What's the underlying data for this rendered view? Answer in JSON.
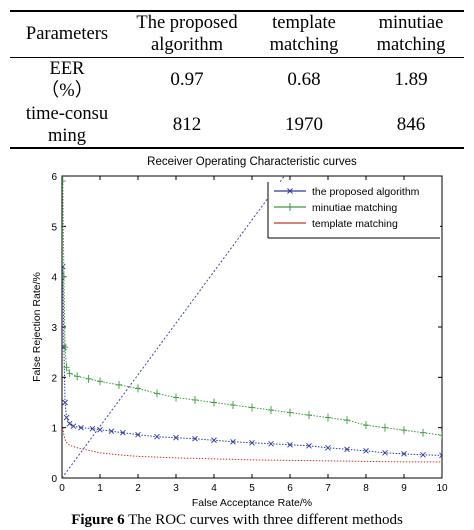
{
  "table": {
    "headers": [
      [
        "Parameters"
      ],
      [
        "The proposed",
        "algorithm"
      ],
      [
        "template",
        "matching"
      ],
      [
        "minutiae",
        "matching"
      ]
    ],
    "rows": [
      {
        "label": [
          "EER",
          "（%）"
        ],
        "values": [
          "0.97",
          "0.68",
          "1.89"
        ]
      },
      {
        "label": [
          "time-consu",
          "ming"
        ],
        "values": [
          "812",
          "1970",
          "846"
        ]
      }
    ]
  },
  "caption": {
    "label": "Figure 6",
    "text": " The ROC curves with three different methods"
  },
  "chart_data": {
    "type": "line",
    "title": "Receiver Operating Characteristic curves",
    "xlabel": "False Acceptance Rate/%",
    "ylabel": "False Rejection Rate/%",
    "xlim": [
      0,
      10
    ],
    "ylim": [
      0,
      6
    ],
    "xticks": [
      "0",
      "1",
      "2",
      "3",
      "4",
      "5",
      "6",
      "7",
      "8",
      "9",
      "10"
    ],
    "yticks": [
      "0",
      "1",
      "2",
      "3",
      "4",
      "5",
      "6"
    ],
    "legend_position": "top-right",
    "grid": false,
    "series": [
      {
        "name": "the proposed algorithm",
        "color": "#2b3a9a",
        "marker": "x",
        "x": [
          0.02,
          0.05,
          0.08,
          0.12,
          0.2,
          0.3,
          0.5,
          0.8,
          1.0,
          1.3,
          1.6,
          2.0,
          2.5,
          3.0,
          3.5,
          4.0,
          4.5,
          5.0,
          5.5,
          6.0,
          6.5,
          7.0,
          7.5,
          8.0,
          8.5,
          9.0,
          9.5,
          10.0
        ],
        "y": [
          4.2,
          2.6,
          1.5,
          1.2,
          1.08,
          1.03,
          1.0,
          0.98,
          0.96,
          0.93,
          0.9,
          0.86,
          0.82,
          0.8,
          0.78,
          0.75,
          0.72,
          0.7,
          0.68,
          0.66,
          0.64,
          0.6,
          0.57,
          0.54,
          0.5,
          0.48,
          0.46,
          0.45
        ]
      },
      {
        "name": "minutiae matching",
        "color": "#3c9a3c",
        "marker": "+",
        "x": [
          0.02,
          0.05,
          0.08,
          0.12,
          0.2,
          0.4,
          0.7,
          1.0,
          1.5,
          2.0,
          2.5,
          3.0,
          3.5,
          4.0,
          4.5,
          5.0,
          5.5,
          6.0,
          6.5,
          7.0,
          7.5,
          8.0,
          8.5,
          9.0,
          9.5,
          10.0
        ],
        "y": [
          5.9,
          4.0,
          2.6,
          2.2,
          2.08,
          2.02,
          1.97,
          1.92,
          1.85,
          1.78,
          1.68,
          1.6,
          1.55,
          1.5,
          1.45,
          1.4,
          1.35,
          1.3,
          1.25,
          1.2,
          1.15,
          1.05,
          1.0,
          0.95,
          0.9,
          0.85
        ]
      },
      {
        "name": "template matching",
        "color": "#c0392b",
        "marker": "none",
        "x": [
          0.02,
          0.05,
          0.1,
          0.2,
          0.4,
          0.7,
          1.0,
          1.5,
          2.0,
          3.0,
          4.0,
          5.0,
          6.0,
          7.0,
          8.0,
          9.0,
          10.0
        ],
        "y": [
          1.0,
          0.85,
          0.72,
          0.65,
          0.6,
          0.55,
          0.5,
          0.46,
          0.43,
          0.4,
          0.38,
          0.36,
          0.35,
          0.34,
          0.33,
          0.32,
          0.32
        ]
      },
      {
        "name": "",
        "color": "#3a4a9a",
        "marker": "none",
        "dashed": true,
        "x": [
          0,
          5.85
        ],
        "y": [
          0,
          6
        ]
      }
    ]
  }
}
